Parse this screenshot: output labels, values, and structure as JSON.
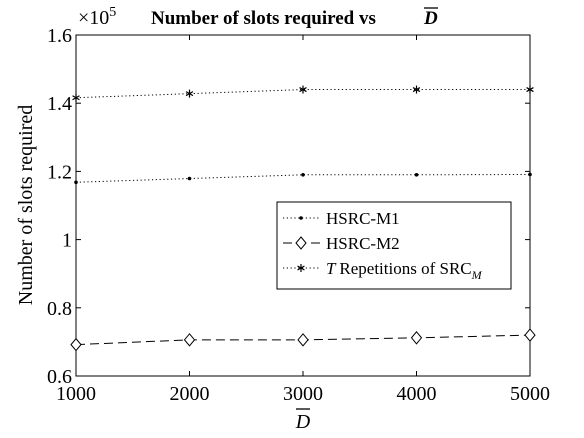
{
  "chart_data": {
    "type": "line",
    "title": "Number of slots required vs",
    "title_symbol": "D",
    "exponent_label": "×10",
    "exponent_power": "5",
    "xlabel": "D",
    "ylabel": "Number of slots required",
    "x": [
      1000,
      2000,
      3000,
      4000,
      5000
    ],
    "xticks": [
      "1000",
      "2000",
      "3000",
      "4000",
      "5000"
    ],
    "yticks": [
      {
        "v": 0.6,
        "label": "0.6"
      },
      {
        "v": 0.8,
        "label": "0.8"
      },
      {
        "v": 1.0,
        "label": "1"
      },
      {
        "v": 1.2,
        "label": "1.2"
      },
      {
        "v": 1.4,
        "label": "1.4"
      },
      {
        "v": 1.6,
        "label": "1.6"
      }
    ],
    "xlim": [
      1000,
      5000
    ],
    "ylim": [
      0.6,
      1.6
    ],
    "grid": false,
    "legend_position": "center-right",
    "series": [
      {
        "name": "HSRC-M1",
        "values": [
          1.168,
          1.179,
          1.19,
          1.19,
          1.191
        ],
        "line": "dotted",
        "marker": "point"
      },
      {
        "name": "HSRC-M2",
        "values": [
          0.692,
          0.706,
          0.706,
          0.712,
          0.72
        ],
        "line": "dashed",
        "marker": "diamond"
      },
      {
        "name_prefix": "T",
        "name": "Repetitions of SRC",
        "name_sub": "M",
        "values": [
          1.416,
          1.428,
          1.44,
          1.44,
          1.44
        ],
        "line": "dotted",
        "marker": "asterisk"
      }
    ]
  }
}
